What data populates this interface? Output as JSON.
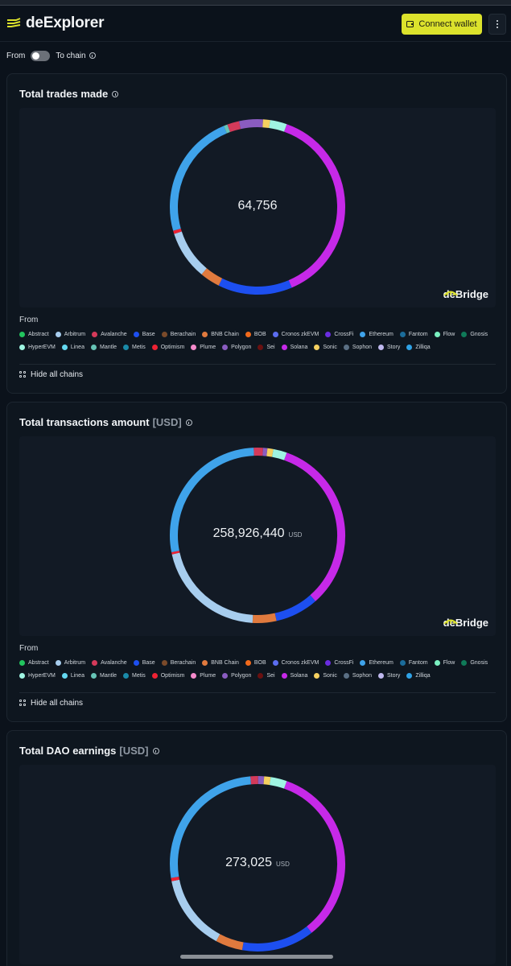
{
  "app": {
    "name": "deExplorer"
  },
  "header": {
    "connect_wallet_label": "Connect wallet",
    "more_icon": "kebab-menu-icon"
  },
  "direction_toggle": {
    "from_label": "From",
    "to_label": "To chain"
  },
  "legend_title": "From",
  "legend": [
    {
      "name": "Abstract",
      "color": "#22c55e"
    },
    {
      "name": "Arbitrum",
      "color": "#a7cdee"
    },
    {
      "name": "Avalanche",
      "color": "#d43a5a"
    },
    {
      "name": "Base",
      "color": "#1d4ff0"
    },
    {
      "name": "Berachain",
      "color": "#7a4a2a"
    },
    {
      "name": "BNB Chain",
      "color": "#e07a3e"
    },
    {
      "name": "BOB",
      "color": "#f26a1b"
    },
    {
      "name": "Cronos zkEVM",
      "color": "#5b6df0"
    },
    {
      "name": "CrossFi",
      "color": "#6a2de0"
    },
    {
      "name": "Ethereum",
      "color": "#3fa3ea"
    },
    {
      "name": "Fantom",
      "color": "#1b6c9a"
    },
    {
      "name": "Flow",
      "color": "#7af0c0"
    },
    {
      "name": "Gnosis",
      "color": "#0f7a58"
    },
    {
      "name": "HyperEVM",
      "color": "#9ff5e2"
    },
    {
      "name": "Linea",
      "color": "#64d8f0"
    },
    {
      "name": "Mantle",
      "color": "#66c4b6"
    },
    {
      "name": "Metis",
      "color": "#1a8aa8"
    },
    {
      "name": "Optimism",
      "color": "#ee2233"
    },
    {
      "name": "Plume",
      "color": "#f58acb"
    },
    {
      "name": "Polygon",
      "color": "#8a5cc0"
    },
    {
      "name": "Sei",
      "color": "#6a1010"
    },
    {
      "name": "Solana",
      "color": "#c629e8"
    },
    {
      "name": "Sonic",
      "color": "#f5d060"
    },
    {
      "name": "Sophon",
      "color": "#5a6f84"
    },
    {
      "name": "Story",
      "color": "#bfb8ee"
    },
    {
      "name": "Zilliqa",
      "color": "#2fa2e6"
    }
  ],
  "hide_all_chains_label": "Hide all chains",
  "brand_label": "deBridge",
  "cards": [
    {
      "title": "Total trades made",
      "unit": "",
      "center_value": "64,756",
      "center_unit": ""
    },
    {
      "title": "Total transactions amount",
      "unit": "[USD]",
      "center_value": "258,926,440",
      "center_unit": "USD"
    },
    {
      "title": "Total DAO earnings",
      "unit": "[USD]",
      "center_value": "273,025",
      "center_unit": "USD"
    }
  ],
  "chart_data": [
    {
      "type": "pie",
      "title": "Total trades made",
      "total": 64756,
      "categories": [
        "Solana",
        "Base",
        "BNB Chain",
        "Arbitrum",
        "Optimism",
        "Ethereum",
        "Mantle",
        "Avalanche",
        "Polygon",
        "Sonic",
        "HyperEVM"
      ],
      "values": [
        0.382,
        0.137,
        0.037,
        0.09,
        0.006,
        0.231,
        0.007,
        0.022,
        0.044,
        0.013,
        0.031
      ],
      "colors": [
        "#c629e8",
        "#1d4ff0",
        "#e07a3e",
        "#a7cdee",
        "#ee2233",
        "#3fa3ea",
        "#66c4b6",
        "#d43a5a",
        "#8a5cc0",
        "#f5d060",
        "#9ff5e2"
      ]
    },
    {
      "type": "pie",
      "title": "Total transactions amount [USD]",
      "total": 258926440,
      "categories": [
        "Solana",
        "Base",
        "BNB Chain",
        "Arbitrum",
        "Optimism",
        "Ethereum",
        "Avalanche",
        "Polygon",
        "Sonic",
        "HyperEVM"
      ],
      "values": [
        0.331,
        0.08,
        0.044,
        0.206,
        0.004,
        0.274,
        0.017,
        0.008,
        0.011,
        0.025
      ],
      "colors": [
        "#c629e8",
        "#1d4ff0",
        "#e07a3e",
        "#a7cdee",
        "#ee2233",
        "#3fa3ea",
        "#d43a5a",
        "#8a5cc0",
        "#f5d060",
        "#9ff5e2"
      ]
    },
    {
      "type": "pie",
      "title": "Total DAO earnings [USD]",
      "total": 273025,
      "categories": [
        "Solana",
        "Base",
        "BNB Chain",
        "Arbitrum",
        "Optimism",
        "Ethereum",
        "Avalanche",
        "Polygon",
        "Sonic",
        "HyperEVM"
      ],
      "values": [
        0.34,
        0.134,
        0.05,
        0.14,
        0.006,
        0.263,
        0.014,
        0.011,
        0.012,
        0.03
      ],
      "colors": [
        "#c629e8",
        "#1d4ff0",
        "#e07a3e",
        "#a7cdee",
        "#ee2233",
        "#3fa3ea",
        "#d43a5a",
        "#8a5cc0",
        "#f5d060",
        "#9ff5e2"
      ]
    }
  ]
}
